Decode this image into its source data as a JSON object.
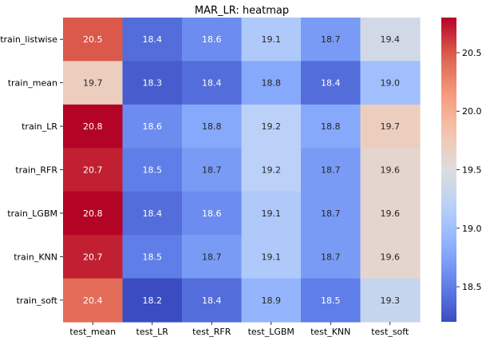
{
  "chart_data": {
    "type": "heatmap",
    "title": "MAR_LR: heatmap",
    "xlabel": "",
    "ylabel": "",
    "x_categories": [
      "test_mean",
      "test_LR",
      "test_RFR",
      "test_LGBM",
      "test_KNN",
      "test_soft"
    ],
    "y_categories": [
      "train_listwise",
      "train_mean",
      "train_LR",
      "train_RFR",
      "train_LGBM",
      "train_KNN",
      "train_soft"
    ],
    "values": [
      [
        20.5,
        18.4,
        18.6,
        19.1,
        18.7,
        19.4
      ],
      [
        19.7,
        18.3,
        18.4,
        18.8,
        18.4,
        19.0
      ],
      [
        20.8,
        18.6,
        18.8,
        19.2,
        18.8,
        19.7
      ],
      [
        20.7,
        18.5,
        18.7,
        19.2,
        18.7,
        19.6
      ],
      [
        20.8,
        18.4,
        18.6,
        19.1,
        18.7,
        19.6
      ],
      [
        20.7,
        18.5,
        18.7,
        19.1,
        18.7,
        19.6
      ],
      [
        20.4,
        18.2,
        18.4,
        18.9,
        18.5,
        19.3
      ]
    ],
    "value_range": [
      18.2,
      20.8
    ],
    "colormap": "coolwarm",
    "colorbar_ticks": [
      18.5,
      19.0,
      19.5,
      20.0,
      20.5
    ],
    "colorbar_tick_labels": [
      "18.5",
      "19.0",
      "19.5",
      "20.0",
      "20.5"
    ],
    "grid": false
  }
}
